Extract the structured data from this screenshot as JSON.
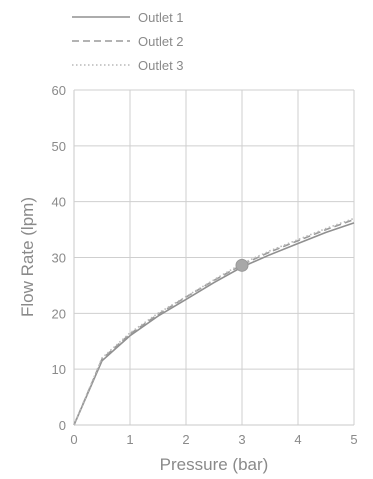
{
  "chart_data": {
    "type": "line",
    "xlabel": "Pressure (bar)",
    "ylabel": "Flow Rate (lpm)",
    "xlim": [
      0,
      5
    ],
    "ylim": [
      0,
      60
    ],
    "x_ticks": [
      "0",
      "1",
      "2",
      "3",
      "4",
      "5"
    ],
    "y_ticks": [
      "0",
      "10",
      "20",
      "30",
      "40",
      "50",
      "60"
    ],
    "grid": true,
    "legend_position": "top-left",
    "series": [
      {
        "name": "Outlet 1",
        "style": "solid",
        "color": "#909090",
        "x": [
          0,
          0.5,
          1,
          1.5,
          2,
          2.5,
          3,
          3.5,
          4,
          4.5,
          5
        ],
        "y": [
          0,
          11.5,
          16,
          19.5,
          22.5,
          25.5,
          28.3,
          30.5,
          32.5,
          34.5,
          36.2
        ]
      },
      {
        "name": "Outlet 2",
        "style": "dashed",
        "color": "#9a9a9a",
        "x": [
          0,
          0.5,
          1,
          1.5,
          2,
          2.5,
          3,
          3.5,
          4,
          4.5,
          5
        ],
        "y": [
          0,
          11.8,
          16.3,
          19.8,
          22.9,
          25.9,
          28.7,
          31,
          33,
          35,
          36.8
        ]
      },
      {
        "name": "Outlet 3",
        "style": "dotted",
        "color": "#b8b8b8",
        "x": [
          0,
          0.5,
          1,
          1.5,
          2,
          2.5,
          3,
          3.5,
          4,
          4.5,
          5
        ],
        "y": [
          0,
          12,
          16.5,
          20,
          23,
          26,
          28.9,
          31.2,
          33.2,
          35.2,
          37
        ]
      }
    ],
    "markers": [
      {
        "x": 3,
        "y": 28.6,
        "color": "#a8a8a8"
      }
    ]
  }
}
